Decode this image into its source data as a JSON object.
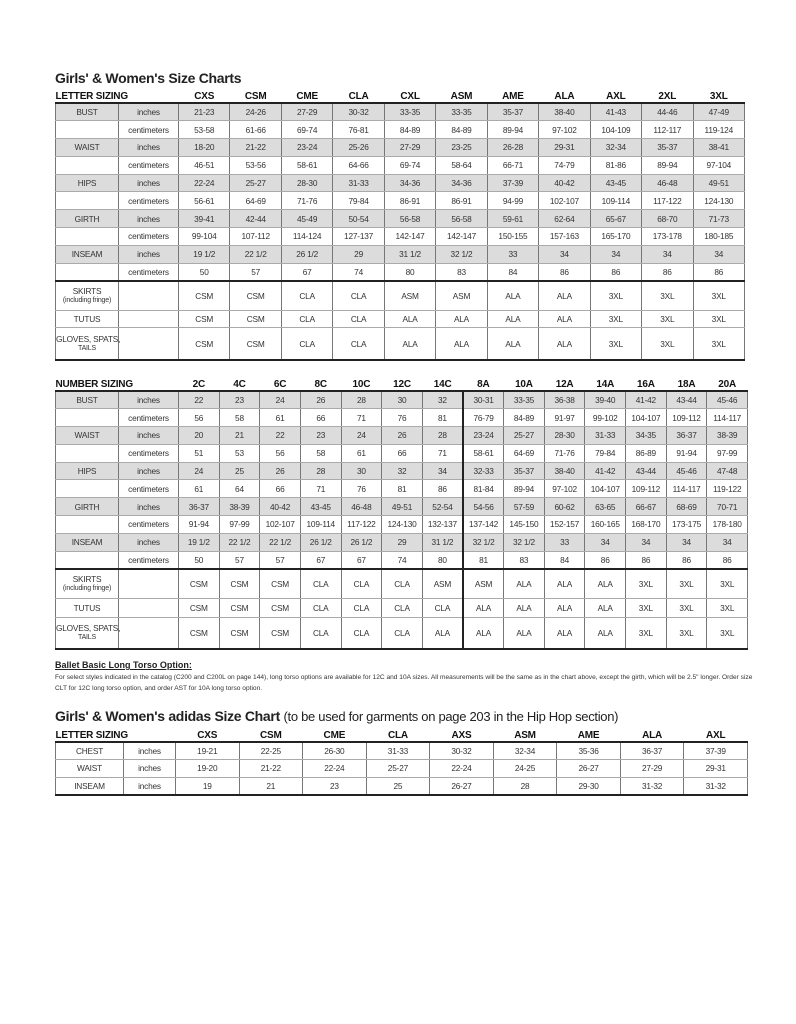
{
  "letter_chart": {
    "title": "Girls' & Women's Size Charts",
    "heading": "LETTER SIZING",
    "columns": [
      "CXS",
      "CSM",
      "CME",
      "CLA",
      "CXL",
      "ASM",
      "AME",
      "ALA",
      "AXL",
      "2XL",
      "3XL"
    ],
    "measurements": [
      {
        "label": "BUST",
        "rows": [
          {
            "unit": "inches",
            "values": [
              "21-23",
              "24-26",
              "27-29",
              "30-32",
              "33-35",
              "33-35",
              "35-37",
              "38-40",
              "41-43",
              "44-46",
              "47-49"
            ]
          },
          {
            "unit": "centimeters",
            "values": [
              "53-58",
              "61-66",
              "69-74",
              "76-81",
              "84-89",
              "84-89",
              "89-94",
              "97-102",
              "104-109",
              "112-117",
              "119-124"
            ]
          }
        ]
      },
      {
        "label": "WAIST",
        "rows": [
          {
            "unit": "inches",
            "values": [
              "18-20",
              "21-22",
              "23-24",
              "25-26",
              "27-29",
              "23-25",
              "26-28",
              "29-31",
              "32-34",
              "35-37",
              "38-41"
            ]
          },
          {
            "unit": "centimeters",
            "values": [
              "46-51",
              "53-56",
              "58-61",
              "64-66",
              "69-74",
              "58-64",
              "66-71",
              "74-79",
              "81-86",
              "89-94",
              "97-104"
            ]
          }
        ]
      },
      {
        "label": "HIPS",
        "rows": [
          {
            "unit": "inches",
            "values": [
              "22-24",
              "25-27",
              "28-30",
              "31-33",
              "34-36",
              "34-36",
              "37-39",
              "40-42",
              "43-45",
              "46-48",
              "49-51"
            ]
          },
          {
            "unit": "centimeters",
            "values": [
              "56-61",
              "64-69",
              "71-76",
              "79-84",
              "86-91",
              "86-91",
              "94-99",
              "102-107",
              "109-114",
              "117-122",
              "124-130"
            ]
          }
        ]
      },
      {
        "label": "GIRTH",
        "rows": [
          {
            "unit": "inches",
            "values": [
              "39-41",
              "42-44",
              "45-49",
              "50-54",
              "56-58",
              "56-58",
              "59-61",
              "62-64",
              "65-67",
              "68-70",
              "71-73"
            ]
          },
          {
            "unit": "centimeters",
            "values": [
              "99-104",
              "107-112",
              "114-124",
              "127-137",
              "142-147",
              "142-147",
              "150-155",
              "157-163",
              "165-170",
              "173-178",
              "180-185"
            ]
          }
        ]
      },
      {
        "label": "INSEAM",
        "rows": [
          {
            "unit": "inches",
            "values": [
              "19 1/2",
              "22 1/2",
              "26 1/2",
              "29",
              "31 1/2",
              "32 1/2",
              "33",
              "34",
              "34",
              "34",
              "34"
            ]
          },
          {
            "unit": "centimeters",
            "values": [
              "50",
              "57",
              "67",
              "74",
              "80",
              "83",
              "84",
              "86",
              "86",
              "86",
              "86"
            ]
          }
        ]
      }
    ],
    "accessories": [
      {
        "label": "SKIRTS",
        "sublabel": "(including fringe)",
        "values": [
          "CSM",
          "CSM",
          "CLA",
          "CLA",
          "ASM",
          "ASM",
          "ALA",
          "ALA",
          "3XL",
          "3XL",
          "3XL"
        ]
      },
      {
        "label": "TUTUS",
        "sublabel": "",
        "values": [
          "CSM",
          "CSM",
          "CLA",
          "CLA",
          "ALA",
          "ALA",
          "ALA",
          "ALA",
          "3XL",
          "3XL",
          "3XL"
        ]
      },
      {
        "label": "GLOVES, SPATS,",
        "sublabel": "TAILS",
        "values": [
          "CSM",
          "CSM",
          "CLA",
          "CLA",
          "ALA",
          "ALA",
          "ALA",
          "ALA",
          "3XL",
          "3XL",
          "3XL"
        ]
      }
    ]
  },
  "number_chart": {
    "heading": "NUMBER SIZING",
    "columns": [
      "2C",
      "4C",
      "6C",
      "8C",
      "10C",
      "12C",
      "14C",
      "8A",
      "10A",
      "12A",
      "14A",
      "16A",
      "18A",
      "20A"
    ],
    "measurements": [
      {
        "label": "BUST",
        "rows": [
          {
            "unit": "inches",
            "values": [
              "22",
              "23",
              "24",
              "26",
              "28",
              "30",
              "32",
              "30-31",
              "33-35",
              "36-38",
              "39-40",
              "41-42",
              "43-44",
              "45-46"
            ]
          },
          {
            "unit": "centimeters",
            "values": [
              "56",
              "58",
              "61",
              "66",
              "71",
              "76",
              "81",
              "76-79",
              "84-89",
              "91-97",
              "99-102",
              "104-107",
              "109-112",
              "114-117"
            ]
          }
        ]
      },
      {
        "label": "WAIST",
        "rows": [
          {
            "unit": "inches",
            "values": [
              "20",
              "21",
              "22",
              "23",
              "24",
              "26",
              "28",
              "23-24",
              "25-27",
              "28-30",
              "31-33",
              "34-35",
              "36-37",
              "38-39"
            ]
          },
          {
            "unit": "centimeters",
            "values": [
              "51",
              "53",
              "56",
              "58",
              "61",
              "66",
              "71",
              "58-61",
              "64-69",
              "71-76",
              "79-84",
              "86-89",
              "91-94",
              "97-99"
            ]
          }
        ]
      },
      {
        "label": "HIPS",
        "rows": [
          {
            "unit": "inches",
            "values": [
              "24",
              "25",
              "26",
              "28",
              "30",
              "32",
              "34",
              "32-33",
              "35-37",
              "38-40",
              "41-42",
              "43-44",
              "45-46",
              "47-48"
            ]
          },
          {
            "unit": "centimeters",
            "values": [
              "61",
              "64",
              "66",
              "71",
              "76",
              "81",
              "86",
              "81-84",
              "89-94",
              "97-102",
              "104-107",
              "109-112",
              "114-117",
              "119-122"
            ]
          }
        ]
      },
      {
        "label": "GIRTH",
        "rows": [
          {
            "unit": "inches",
            "values": [
              "36-37",
              "38-39",
              "40-42",
              "43-45",
              "46-48",
              "49-51",
              "52-54",
              "54-56",
              "57-59",
              "60-62",
              "63-65",
              "66-67",
              "68-69",
              "70-71"
            ]
          },
          {
            "unit": "centimeters",
            "values": [
              "91-94",
              "97-99",
              "102-107",
              "109-114",
              "117-122",
              "124-130",
              "132-137",
              "137-142",
              "145-150",
              "152-157",
              "160-165",
              "168-170",
              "173-175",
              "178-180"
            ]
          }
        ]
      },
      {
        "label": "INSEAM",
        "rows": [
          {
            "unit": "inches",
            "values": [
              "19 1/2",
              "22 1/2",
              "22 1/2",
              "26 1/2",
              "26 1/2",
              "29",
              "31 1/2",
              "32 1/2",
              "32 1/2",
              "33",
              "34",
              "34",
              "34",
              "34"
            ]
          },
          {
            "unit": "centimeters",
            "values": [
              "50",
              "57",
              "57",
              "67",
              "67",
              "74",
              "80",
              "81",
              "83",
              "84",
              "86",
              "86",
              "86",
              "86"
            ]
          }
        ]
      }
    ],
    "accessories": [
      {
        "label": "SKIRTS",
        "sublabel": "(including fringe)",
        "values": [
          "CSM",
          "CSM",
          "CSM",
          "CLA",
          "CLA",
          "CLA",
          "ASM",
          "ASM",
          "ALA",
          "ALA",
          "ALA",
          "3XL",
          "3XL",
          "3XL"
        ]
      },
      {
        "label": "TUTUS",
        "sublabel": "",
        "values": [
          "CSM",
          "CSM",
          "CSM",
          "CLA",
          "CLA",
          "CLA",
          "CLA",
          "ALA",
          "ALA",
          "ALA",
          "ALA",
          "3XL",
          "3XL",
          "3XL"
        ]
      },
      {
        "label": "GLOVES, SPATS,",
        "sublabel": "TAILS",
        "values": [
          "CSM",
          "CSM",
          "CSM",
          "CLA",
          "CLA",
          "CLA",
          "ALA",
          "ALA",
          "ALA",
          "ALA",
          "ALA",
          "3XL",
          "3XL",
          "3XL"
        ]
      }
    ]
  },
  "long_torso": {
    "heading": "Ballet Basic Long Torso Option:",
    "text": "For select styles indicated in the catalog (C200 and C200L on page 144), long torso options are available for 12C and 10A sizes. All measurements will be the same as in the chart above, except the girth, which will be 2.5\" longer. Order size CLT for 12C long torso option, and order AST for 10A long torso option."
  },
  "adidas_chart": {
    "title": "Girls' & Women's adidas Size Chart",
    "subtitle": "(to be used for garments on page 203 in the Hip Hop section)",
    "heading": "LETTER SIZING",
    "columns": [
      "CXS",
      "CSM",
      "CME",
      "CLA",
      "AXS",
      "ASM",
      "AME",
      "ALA",
      "AXL"
    ],
    "rows": [
      {
        "label": "CHEST",
        "unit": "inches",
        "values": [
          "19-21",
          "22-25",
          "26-30",
          "31-33",
          "30-32",
          "32-34",
          "35-36",
          "36-37",
          "37-39"
        ]
      },
      {
        "label": "WAIST",
        "unit": "inches",
        "values": [
          "19-20",
          "21-22",
          "22-24",
          "25-27",
          "22-24",
          "24-25",
          "26-27",
          "27-29",
          "29-31"
        ]
      },
      {
        "label": "INSEAM",
        "unit": "inches",
        "values": [
          "19",
          "21",
          "23",
          "25",
          "26-27",
          "28",
          "29-30",
          "31-32",
          "31-32"
        ]
      }
    ]
  },
  "colors": {
    "row_shade": "#dcdcdc",
    "rule": "#222222"
  }
}
